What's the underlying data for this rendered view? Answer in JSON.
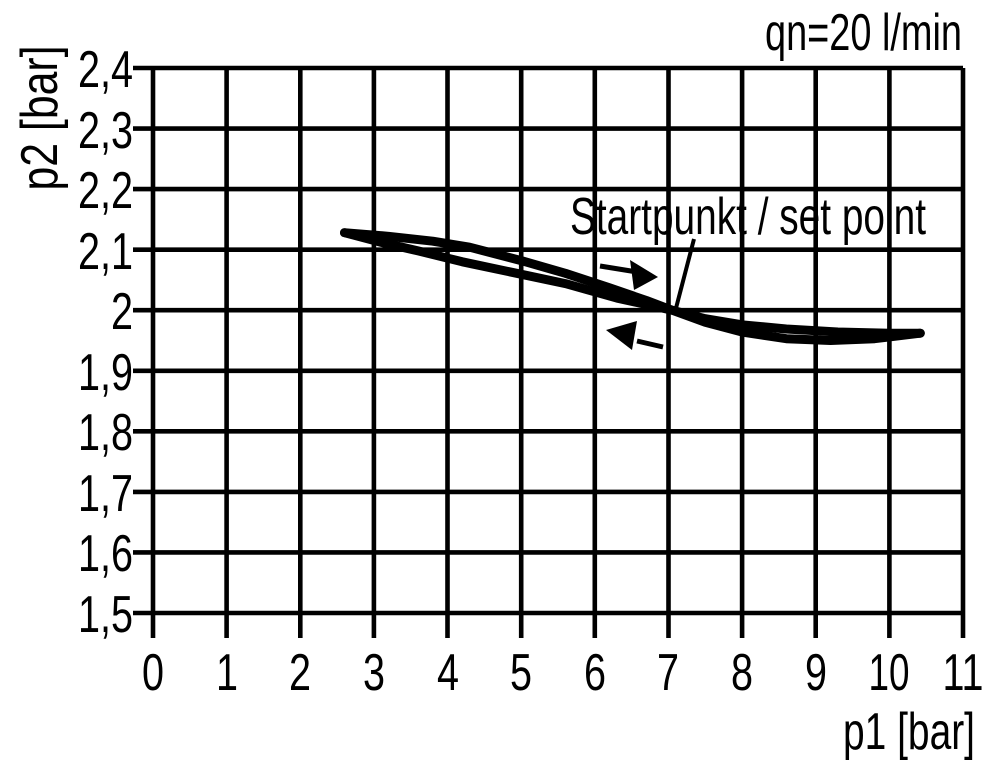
{
  "chart_data": {
    "type": "line",
    "title": "",
    "flow_annotation": "qn=20 l/min",
    "setpoint_annotation": "Startpunkt / set point",
    "xlabel": "p1 [bar]",
    "ylabel": "p2 [bar]",
    "xlim": [
      0,
      11
    ],
    "ylim": [
      1.5,
      2.4
    ],
    "grid": true,
    "legend_position": "none",
    "x_tick_values": [
      0,
      1,
      2,
      3,
      4,
      5,
      6,
      7,
      8,
      9,
      10,
      11
    ],
    "x_tick_labels": [
      "0",
      "1",
      "2",
      "3",
      "4",
      "5",
      "6",
      "7",
      "8",
      "9",
      "10",
      "11"
    ],
    "y_tick_values": [
      2.4,
      2.3,
      2.2,
      2.1,
      2.0,
      1.9,
      1.8,
      1.7,
      1.6,
      1.5
    ],
    "y_tick_labels": [
      "2,4",
      "2,3",
      "2,2",
      "2,1",
      "2",
      "1,9",
      "1,8",
      "1,7",
      "1,6",
      "1,5"
    ],
    "set_point": {
      "p1": 7.0,
      "p2": 2.0
    },
    "series": [
      {
        "name": "forward-sweep-p1-increasing",
        "direction_arrow": "right",
        "points": [
          [
            2.6,
            2.128
          ],
          [
            3.2,
            2.122
          ],
          [
            3.8,
            2.114
          ],
          [
            4.3,
            2.104
          ],
          [
            5.0,
            2.082
          ],
          [
            5.6,
            2.061
          ],
          [
            6.2,
            2.037
          ],
          [
            6.7,
            2.016
          ],
          [
            7.05,
            2.0
          ],
          [
            7.5,
            1.98
          ],
          [
            8.0,
            1.964
          ],
          [
            8.6,
            1.953
          ],
          [
            9.2,
            1.95
          ],
          [
            9.8,
            1.953
          ],
          [
            10.42,
            1.962
          ]
        ]
      },
      {
        "name": "return-sweep-p1-decreasing",
        "direction_arrow": "left",
        "points": [
          [
            2.6,
            2.128
          ],
          [
            3.1,
            2.112
          ],
          [
            3.6,
            2.098
          ],
          [
            4.2,
            2.08
          ],
          [
            4.9,
            2.062
          ],
          [
            5.6,
            2.044
          ],
          [
            6.3,
            2.02
          ],
          [
            7.05,
            2.0
          ],
          [
            7.5,
            1.986
          ],
          [
            8.0,
            1.976
          ],
          [
            8.6,
            1.969
          ],
          [
            9.3,
            1.964
          ],
          [
            10.0,
            1.962
          ],
          [
            10.42,
            1.962
          ]
        ]
      }
    ]
  },
  "colors": {
    "foreground": "#000000",
    "background": "#ffffff"
  }
}
